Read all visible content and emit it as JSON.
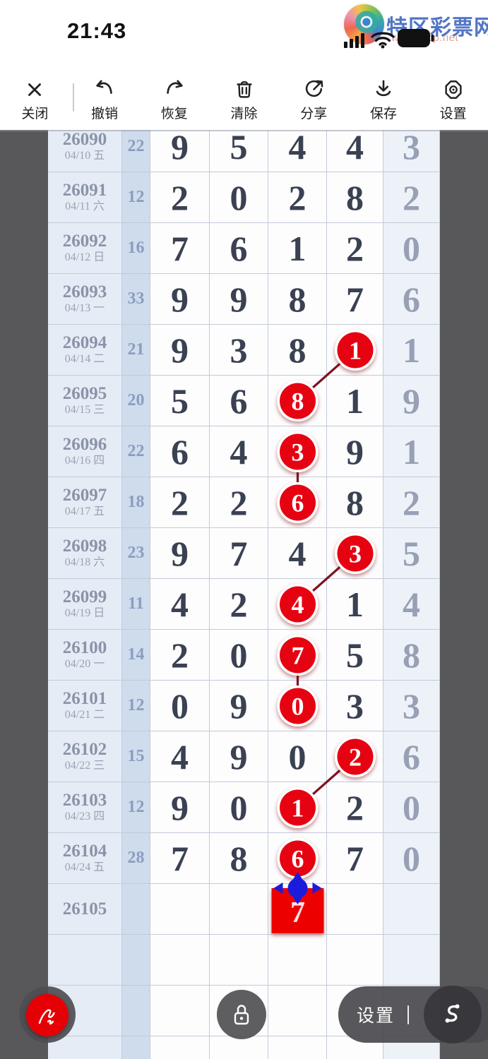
{
  "status_bar": {
    "time": "21:43",
    "logo_text": "特区彩票网",
    "watermark": "www.tqcp.net",
    "icons": [
      "cellular-signal-icon",
      "wifi-icon",
      "battery-icon"
    ]
  },
  "toolbar": {
    "items": [
      {
        "id": "close",
        "label": "关闭"
      },
      {
        "id": "undo",
        "label": "撤销"
      },
      {
        "id": "redo",
        "label": "恢复"
      },
      {
        "id": "clear",
        "label": "清除"
      },
      {
        "id": "share",
        "label": "分享"
      },
      {
        "id": "save",
        "label": "保存"
      },
      {
        "id": "settings",
        "label": "设置"
      }
    ]
  },
  "chart_data": {
    "type": "table",
    "description": "Lottery draw trend chart: issue number + date, sum of first four digits, five drawn digits per row; user-drawn red circle marks connected by dark red strokes; pending red square mark with blue move handle on row 26105.",
    "rows": [
      {
        "issue": "26090",
        "date": "04/10 五",
        "sum": "22",
        "digits": [
          "9",
          "5",
          "4",
          "4",
          "3"
        ],
        "circled": null
      },
      {
        "issue": "26091",
        "date": "04/11 六",
        "sum": "12",
        "digits": [
          "2",
          "0",
          "2",
          "8",
          "2"
        ],
        "circled": null
      },
      {
        "issue": "26092",
        "date": "04/12 日",
        "sum": "16",
        "digits": [
          "7",
          "6",
          "1",
          "2",
          "0"
        ],
        "circled": null
      },
      {
        "issue": "26093",
        "date": "04/13 一",
        "sum": "33",
        "digits": [
          "9",
          "9",
          "8",
          "7",
          "6"
        ],
        "circled": null
      },
      {
        "issue": "26094",
        "date": "04/14 二",
        "sum": "21",
        "digits": [
          "9",
          "3",
          "8",
          "1",
          "1"
        ],
        "circled": 3
      },
      {
        "issue": "26095",
        "date": "04/15 三",
        "sum": "20",
        "digits": [
          "5",
          "6",
          "8",
          "1",
          "9"
        ],
        "circled": 2
      },
      {
        "issue": "26096",
        "date": "04/16 四",
        "sum": "22",
        "digits": [
          "6",
          "4",
          "3",
          "9",
          "1"
        ],
        "circled": 2
      },
      {
        "issue": "26097",
        "date": "04/17 五",
        "sum": "18",
        "digits": [
          "2",
          "2",
          "6",
          "8",
          "2"
        ],
        "circled": 2
      },
      {
        "issue": "26098",
        "date": "04/18 六",
        "sum": "23",
        "digits": [
          "9",
          "7",
          "4",
          "3",
          "5"
        ],
        "circled": 3
      },
      {
        "issue": "26099",
        "date": "04/19 日",
        "sum": "11",
        "digits": [
          "4",
          "2",
          "4",
          "1",
          "4"
        ],
        "circled": 2
      },
      {
        "issue": "26100",
        "date": "04/20 一",
        "sum": "14",
        "digits": [
          "2",
          "0",
          "7",
          "5",
          "8"
        ],
        "circled": 2
      },
      {
        "issue": "26101",
        "date": "04/21 二",
        "sum": "12",
        "digits": [
          "0",
          "9",
          "0",
          "3",
          "3"
        ],
        "circled": 2
      },
      {
        "issue": "26102",
        "date": "04/22 三",
        "sum": "15",
        "digits": [
          "4",
          "9",
          "0",
          "2",
          "6"
        ],
        "circled": 3
      },
      {
        "issue": "26103",
        "date": "04/23 四",
        "sum": "12",
        "digits": [
          "9",
          "0",
          "1",
          "2",
          "0"
        ],
        "circled": 2
      },
      {
        "issue": "26104",
        "date": "04/24 五",
        "sum": "28",
        "digits": [
          "7",
          "8",
          "6",
          "7",
          "0"
        ],
        "circled": 2
      },
      {
        "issue": "26105",
        "date": "",
        "sum": "",
        "digits": [
          "",
          "",
          "7",
          "",
          ""
        ],
        "circled": 2,
        "pending": true
      }
    ],
    "empty_rows": 3,
    "connections": [
      {
        "from": [
          4,
          3
        ],
        "to": [
          5,
          2
        ]
      },
      {
        "from": [
          6,
          2
        ],
        "to": [
          7,
          2
        ]
      },
      {
        "from": [
          8,
          3
        ],
        "to": [
          9,
          2
        ]
      },
      {
        "from": [
          10,
          2
        ],
        "to": [
          11,
          2
        ]
      },
      {
        "from": [
          12,
          3
        ],
        "to": [
          13,
          2
        ]
      },
      {
        "from": [
          14,
          2
        ],
        "to": [
          15,
          2
        ]
      }
    ]
  },
  "bottom_controls": {
    "settings_label": "设置",
    "divider": "|",
    "icons": [
      "pen-scribble-icon",
      "lock-icon",
      "curve-tool-icon"
    ]
  },
  "colors": {
    "circle_red": "#e60211",
    "line_red": "#7e1322",
    "square_red": "#ed0202",
    "handle_blue": "#1b1bdc",
    "strip_gray": "#58585a",
    "logo_blue": "#4067c0",
    "digit_dark": "#3a4152",
    "digit_light": "#97a0b5"
  }
}
